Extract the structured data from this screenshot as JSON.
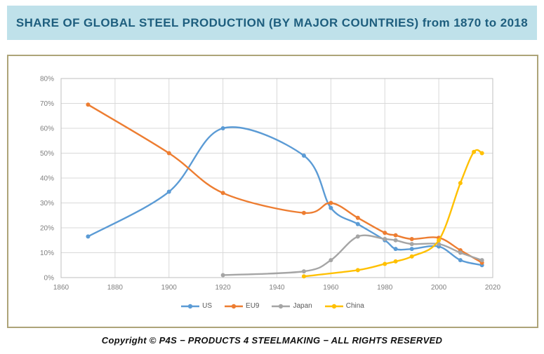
{
  "banner": {
    "title": "SHARE OF GLOBAL STEEL PRODUCTION (BY MAJOR COUNTRIES) from 1870 to 2018"
  },
  "footer": {
    "text": "Copyright © P4S − PRODUCTS 4 STEELMAKING − ALL RIGHTS RESERVED"
  },
  "theme": {
    "banner_bg": "#BFE1EA",
    "banner_text": "#1E5E7E",
    "frame_border": "#ADA478",
    "grid_color": "#D9D9D9",
    "plot_border_color": "#BFBFBF",
    "tick_text_color": "#7F7F7F",
    "legend_text_color": "#595959"
  },
  "chart_data": {
    "type": "line",
    "title": "SHARE OF GLOBAL STEEL PRODUCTION (BY MAJOR COUNTRIES) from 1870 to 2018",
    "xlabel": "",
    "ylabel": "",
    "xlim": [
      1860,
      2020
    ],
    "ylim": [
      0,
      80
    ],
    "x_ticks": [
      1860,
      1880,
      1900,
      1920,
      1940,
      1960,
      1980,
      2000,
      2020
    ],
    "y_ticks": [
      0,
      10,
      20,
      30,
      40,
      50,
      60,
      70,
      80
    ],
    "y_tick_suffix": "%",
    "grid": true,
    "smooth_lines": true,
    "markers": true,
    "legend_position": "bottom",
    "series": [
      {
        "name": "US",
        "color": "#5B9BD5",
        "points": [
          [
            1870,
            16.5
          ],
          [
            1900,
            34.5
          ],
          [
            1920,
            60
          ],
          [
            1950,
            49
          ],
          [
            1960,
            28
          ],
          [
            1970,
            21.5
          ],
          [
            1980,
            15
          ],
          [
            1984,
            11.5
          ],
          [
            1990,
            11.5
          ],
          [
            2000,
            12.5
          ],
          [
            2008,
            7
          ],
          [
            2016,
            5
          ]
        ]
      },
      {
        "name": "EU9",
        "color": "#ED7D31",
        "points": [
          [
            1870,
            69.5
          ],
          [
            1900,
            50
          ],
          [
            1920,
            34
          ],
          [
            1950,
            26
          ],
          [
            1960,
            30
          ],
          [
            1970,
            24
          ],
          [
            1980,
            18
          ],
          [
            1984,
            17
          ],
          [
            1990,
            15.5
          ],
          [
            2000,
            16
          ],
          [
            2008,
            11
          ],
          [
            2016,
            6
          ]
        ]
      },
      {
        "name": "Japan",
        "color": "#A5A5A5",
        "points": [
          [
            1920,
            1
          ],
          [
            1950,
            2.5
          ],
          [
            1960,
            7
          ],
          [
            1970,
            16.5
          ],
          [
            1980,
            15.5
          ],
          [
            1984,
            15
          ],
          [
            1990,
            13.5
          ],
          [
            2000,
            13.5
          ],
          [
            2008,
            10
          ],
          [
            2016,
            7
          ]
        ]
      },
      {
        "name": "China",
        "color": "#FFC000",
        "points": [
          [
            1950,
            0.5
          ],
          [
            1970,
            3
          ],
          [
            1980,
            5.5
          ],
          [
            1984,
            6.5
          ],
          [
            1990,
            8.5
          ],
          [
            2000,
            15
          ],
          [
            2008,
            38
          ],
          [
            2013,
            50.5
          ],
          [
            2016,
            50
          ]
        ]
      }
    ]
  }
}
